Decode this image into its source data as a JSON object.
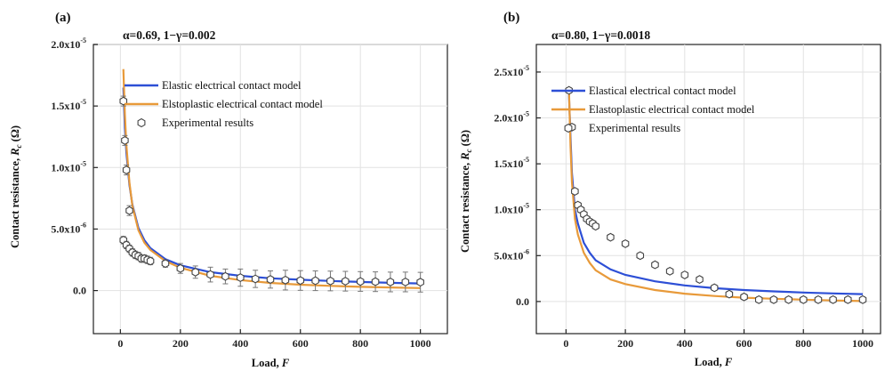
{
  "chart_data": [
    {
      "type": "line",
      "panel_label": "(a)",
      "parameters": "α=0.69, 1−γ=0.002",
      "xlabel": "Load, F",
      "xlabel_main": "Load, ",
      "xlabel_sym": "F",
      "ylabel": "Contact resistance, Rc (Ω)",
      "ylabel_main": "Contact resistance, ",
      "ylabel_sym": "R",
      "ylabel_sub": "c",
      "ylabel_unit": " (Ω)",
      "xlim": [
        -90,
        1090
      ],
      "ylim": [
        -3.5,
        20
      ],
      "y_unit_exp": "-5",
      "x_ticks": [
        {
          "v": 0,
          "label": "0"
        },
        {
          "v": 200,
          "label": "200"
        },
        {
          "v": 400,
          "label": "400"
        },
        {
          "v": 600,
          "label": "600"
        },
        {
          "v": 800,
          "label": "800"
        },
        {
          "v": 1000,
          "label": "1000"
        }
      ],
      "y_ticks": [
        {
          "v": 0,
          "mant": "0.0",
          "exp": ""
        },
        {
          "v": 5,
          "mant": "5.0x10",
          "exp": "-6"
        },
        {
          "v": 10,
          "mant": "1.0x10",
          "exp": "-5"
        },
        {
          "v": 15,
          "mant": "1.5x10",
          "exp": "-5"
        },
        {
          "v": 20,
          "mant": "2.0x10",
          "exp": "-5"
        }
      ],
      "series": [
        {
          "name": "Elastic electrical contact model",
          "style": "line",
          "color": "#2d4fd6",
          "x": [
            10,
            15,
            20,
            30,
            40,
            60,
            80,
            100,
            150,
            200,
            300,
            400,
            500,
            600,
            700,
            800,
            900,
            1000
          ],
          "y": [
            16.5,
            13.2,
            11.2,
            8.6,
            7.0,
            5.1,
            4.1,
            3.45,
            2.55,
            2.05,
            1.5,
            1.2,
            1.0,
            0.88,
            0.78,
            0.7,
            0.63,
            0.58
          ]
        },
        {
          "name": "Elstoplastic electrical contact model",
          "style": "line",
          "color": "#e89a3a",
          "x": [
            10,
            15,
            20,
            30,
            40,
            60,
            80,
            100,
            150,
            200,
            300,
            400,
            500,
            600,
            700,
            800,
            900,
            1000
          ],
          "y": [
            18.0,
            14.3,
            11.8,
            8.8,
            6.9,
            4.9,
            3.9,
            3.3,
            2.4,
            1.85,
            1.2,
            0.85,
            0.62,
            0.48,
            0.38,
            0.3,
            0.25,
            0.2
          ]
        },
        {
          "name": "Experimental results",
          "style": "markers",
          "color": "#444444",
          "x": [
            10,
            15,
            20,
            30,
            10,
            20,
            30,
            40,
            50,
            60,
            70,
            80,
            90,
            100,
            150,
            200,
            250,
            300,
            350,
            400,
            450,
            500,
            550,
            600,
            650,
            700,
            750,
            800,
            850,
            900,
            950,
            1000
          ],
          "y": [
            15.4,
            12.2,
            9.8,
            6.5,
            4.1,
            3.7,
            3.4,
            3.1,
            2.9,
            2.8,
            2.6,
            2.6,
            2.5,
            2.4,
            2.2,
            1.8,
            1.5,
            1.3,
            1.15,
            1.05,
            0.95,
            0.9,
            0.85,
            0.82,
            0.8,
            0.78,
            0.76,
            0.74,
            0.72,
            0.7,
            0.7,
            0.68
          ],
          "err": [
            0.4,
            0.4,
            0.4,
            0.4,
            0.3,
            0.3,
            0.3,
            0.3,
            0.3,
            0.3,
            0.3,
            0.3,
            0.3,
            0.3,
            0.3,
            0.4,
            0.5,
            0.6,
            0.6,
            0.7,
            0.7,
            0.7,
            0.8,
            0.8,
            0.8,
            0.8,
            0.8,
            0.8,
            0.8,
            0.8,
            0.8,
            0.8
          ]
        }
      ],
      "legend": "top-right"
    },
    {
      "type": "line",
      "panel_label": "(b)",
      "parameters": "α=0.80, 1−γ=0.0018",
      "xlabel": "Load, F",
      "xlabel_main": "Load, ",
      "xlabel_sym": "F",
      "ylabel": "Contact resistance, Rc (Ω)",
      "ylabel_main": "Contact resistance, ",
      "ylabel_sym": "R",
      "ylabel_sub": "c",
      "ylabel_unit": " (Ω)",
      "xlim": [
        -100,
        1060
      ],
      "ylim": [
        -3.5,
        28
      ],
      "y_unit_exp": "-5",
      "x_ticks": [
        {
          "v": 0,
          "label": "0"
        },
        {
          "v": 200,
          "label": "200"
        },
        {
          "v": 400,
          "label": "400"
        },
        {
          "v": 600,
          "label": "600"
        },
        {
          "v": 800,
          "label": "800"
        },
        {
          "v": 1000,
          "label": "1000"
        }
      ],
      "y_ticks": [
        {
          "v": 0,
          "mant": "0.0",
          "exp": ""
        },
        {
          "v": 5,
          "mant": "5.0x10",
          "exp": "-6"
        },
        {
          "v": 10,
          "mant": "1.0x10",
          "exp": "-5"
        },
        {
          "v": 15,
          "mant": "1.5x10",
          "exp": "-5"
        },
        {
          "v": 20,
          "mant": "2.0x10",
          "exp": "-5"
        },
        {
          "v": 25,
          "mant": "2.5x10",
          "exp": "-5"
        }
      ],
      "series": [
        {
          "name": "Elastical electrical contact model",
          "style": "line",
          "color": "#2d4fd6",
          "x": [
            10,
            15,
            20,
            30,
            40,
            60,
            80,
            100,
            150,
            200,
            300,
            400,
            500,
            600,
            700,
            800,
            900,
            1000
          ],
          "y": [
            22.5,
            18.0,
            14.0,
            10.0,
            8.5,
            6.4,
            5.3,
            4.5,
            3.5,
            2.9,
            2.2,
            1.75,
            1.45,
            1.25,
            1.1,
            0.98,
            0.88,
            0.8
          ]
        },
        {
          "name": "Elastoplastic electrical contact model",
          "style": "line",
          "color": "#e89a3a",
          "x": [
            10,
            15,
            20,
            30,
            40,
            60,
            80,
            100,
            150,
            200,
            300,
            400,
            500,
            600,
            700,
            800,
            900,
            1000
          ],
          "y": [
            23.0,
            17.0,
            13.0,
            9.0,
            7.3,
            5.3,
            4.2,
            3.4,
            2.4,
            1.9,
            1.25,
            0.85,
            0.6,
            0.42,
            0.3,
            0.2,
            0.12,
            0.05
          ]
        },
        {
          "name": "Experimental results",
          "style": "markers",
          "color": "#444444",
          "x": [
            10,
            20,
            30,
            40,
            50,
            60,
            70,
            80,
            90,
            100,
            150,
            200,
            250,
            300,
            350,
            400,
            450,
            500,
            550,
            600,
            650,
            700,
            750,
            800,
            850,
            900,
            950,
            1000
          ],
          "y": [
            23.0,
            19.0,
            12.0,
            10.5,
            10.0,
            9.5,
            9.0,
            8.7,
            8.5,
            8.2,
            7.0,
            6.3,
            5.0,
            4.0,
            3.3,
            2.9,
            2.4,
            1.5,
            0.8,
            0.5,
            0.2,
            0.2,
            0.2,
            0.2,
            0.2,
            0.2,
            0.2,
            0.2
          ],
          "err": [
            0.3,
            0.3,
            0.3,
            0.3,
            0.3,
            0.3,
            0.3,
            0.3,
            0.3,
            0.3,
            0.3,
            0.3,
            0.3,
            0.3,
            0.3,
            0.3,
            0.3,
            0.3,
            0.3,
            0.3,
            0.3,
            0.3,
            0.3,
            0.3,
            0.3,
            0.3,
            0.3,
            0.3
          ]
        }
      ],
      "legend": "top-right"
    }
  ]
}
